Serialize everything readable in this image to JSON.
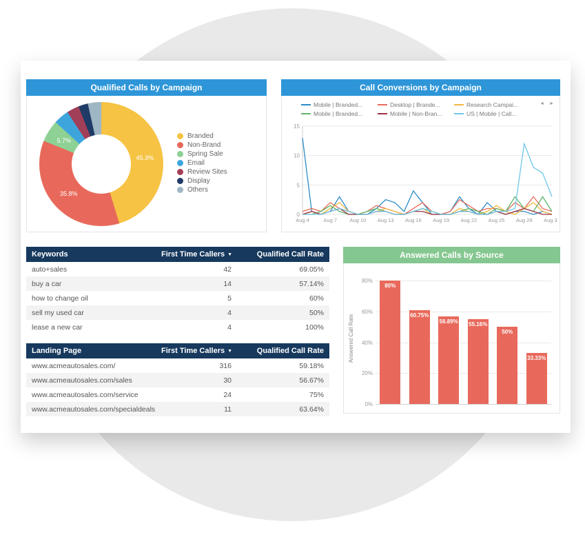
{
  "ui": {
    "sort_icon": "▼",
    "legend_prev": "◄",
    "legend_next": "►"
  },
  "colors": {
    "panel_header_blue": "#2e96d8",
    "panel_header_green": "#85c790",
    "table_header_navy": "#17395e",
    "bar_color": "#e8695b"
  },
  "chart_data": [
    {
      "type": "pie",
      "donut": true,
      "title": "Qualified Calls by Campaign",
      "legend_position": "right",
      "slices": [
        {
          "label": "Branded",
          "value": 45.3,
          "color": "#f6c344",
          "display": "45.3%"
        },
        {
          "label": "Non-Brand",
          "value": 35.8,
          "color": "#e8695b",
          "display": "35.8%"
        },
        {
          "label": "Spring Sale",
          "value": 5.7,
          "color": "#8ed194",
          "display": "5.7%"
        },
        {
          "label": "Email",
          "value": 4.0,
          "color": "#3ea5dc",
          "display": ""
        },
        {
          "label": "Review Sites",
          "value": 3.2,
          "color": "#a23f58",
          "display": ""
        },
        {
          "label": "Display",
          "value": 2.5,
          "color": "#1f3b66",
          "display": ""
        },
        {
          "label": "Others",
          "value": 3.5,
          "color": "#9fb6c4",
          "display": ""
        }
      ]
    },
    {
      "type": "line",
      "title": "Call Conversions by Campaign",
      "x_ticks": [
        "Aug 4",
        "Aug 7",
        "Aug 10",
        "Aug 13",
        "Aug 16",
        "Aug 19",
        "Aug 22",
        "Aug 25",
        "Aug 28",
        "Aug 31"
      ],
      "tick_every_days": 3,
      "ylim": [
        0,
        15
      ],
      "y_ticks": [
        0,
        5,
        10,
        15
      ],
      "grid": true,
      "legend_position": "top",
      "series": [
        {
          "name": "Mobile | Branded...",
          "color": "#2b8cc8",
          "values": [
            13,
            0.5,
            0,
            0.5,
            3,
            0.5,
            0,
            0,
            1,
            2.5,
            2,
            0.5,
            4,
            2,
            0,
            0,
            0.5,
            3,
            1,
            0,
            2,
            0.5,
            0,
            0.5,
            0.5,
            0,
            0.5,
            0
          ]
        },
        {
          "name": "Desktop | Brande...",
          "color": "#e8695b",
          "values": [
            0.5,
            1,
            0.5,
            2,
            1,
            0.5,
            0,
            0.5,
            1.5,
            1,
            0.5,
            0,
            1,
            2,
            0.5,
            0,
            0.5,
            2.5,
            1.5,
            0.5,
            1,
            1,
            0.5,
            2,
            1,
            3,
            1,
            0.5
          ]
        },
        {
          "name": "Research Campai...",
          "color": "#f0b840",
          "values": [
            0,
            0.5,
            0,
            1,
            2,
            0.5,
            0,
            0,
            0.5,
            1,
            0.5,
            0,
            0.5,
            1,
            0,
            0,
            0,
            1,
            0.5,
            0,
            0.5,
            1.5,
            0.5,
            0,
            1,
            2,
            0.5,
            0
          ]
        },
        {
          "name": "Mobile | Branded...",
          "color": "#5fb569",
          "values": [
            0,
            0,
            0.5,
            1.5,
            0.5,
            0,
            0,
            0.5,
            1,
            0.5,
            0,
            0,
            0.5,
            1,
            0.5,
            0,
            0,
            0.5,
            1,
            0.5,
            0,
            1,
            0.5,
            3,
            1,
            0.5,
            3,
            0.5
          ]
        },
        {
          "name": "Mobile | Non-Bran...",
          "color": "#a03040",
          "values": [
            0,
            0.5,
            0,
            0.5,
            1,
            0,
            0,
            0,
            0.5,
            0.5,
            0,
            0,
            0.5,
            0.5,
            0,
            0,
            0,
            0.5,
            0.5,
            0,
            0,
            0.5,
            0,
            0.5,
            1,
            0.5,
            0,
            0
          ]
        },
        {
          "name": "US | Mobile | Call...",
          "color": "#6ec6e8",
          "values": [
            0,
            0,
            0,
            0.5,
            1,
            0.5,
            0,
            0,
            0.5,
            0.5,
            0,
            0,
            0.5,
            1,
            0.5,
            0,
            0,
            0.5,
            0.5,
            0,
            0,
            0.5,
            0.5,
            1,
            12,
            8,
            7,
            3
          ]
        }
      ]
    },
    {
      "type": "table",
      "columns": [
        {
          "label": "Keywords",
          "sort": ""
        },
        {
          "label": "First Time Callers",
          "sort": "desc"
        },
        {
          "label": "Qualified Call Rate",
          "sort": ""
        }
      ],
      "rows": [
        [
          "auto+sales",
          "42",
          "69.05%"
        ],
        [
          "buy a car",
          "14",
          "57.14%"
        ],
        [
          "how to change oil",
          "5",
          "60%"
        ],
        [
          "sell my used car",
          "4",
          "50%"
        ],
        [
          "lease a new car",
          "4",
          "100%"
        ]
      ]
    },
    {
      "type": "table",
      "columns": [
        {
          "label": "Landing Page",
          "sort": ""
        },
        {
          "label": "First Time Callers",
          "sort": "desc"
        },
        {
          "label": "Qualified Call Rate",
          "sort": ""
        }
      ],
      "rows": [
        [
          "www.acmeautosales.com/",
          "316",
          "59.18%"
        ],
        [
          "www.acmeautosales.com/sales",
          "30",
          "56.67%"
        ],
        [
          "www.acmeautosales.com/service",
          "24",
          "75%"
        ],
        [
          "www.acmeautosales.com/specialdeals",
          "11",
          "63.64%"
        ]
      ]
    },
    {
      "type": "bar",
      "title": "Answered Calls by Source",
      "categories": [
        "",
        "",
        "",
        "",
        "",
        ""
      ],
      "values": [
        80,
        60.75,
        56.89,
        55.16,
        50,
        33.33
      ],
      "labels": [
        "80%",
        "60.75%",
        "56.89%",
        "55.16%",
        "50%",
        "33.33%"
      ],
      "ylabel": "Answered Call Rate",
      "y_ticks": [
        0,
        20,
        40,
        60,
        80
      ],
      "y_tick_labels": [
        "0%",
        "20%",
        "40%",
        "60%",
        "80%"
      ],
      "ylim": [
        0,
        86
      ],
      "bar_color": "#e8695b"
    }
  ]
}
